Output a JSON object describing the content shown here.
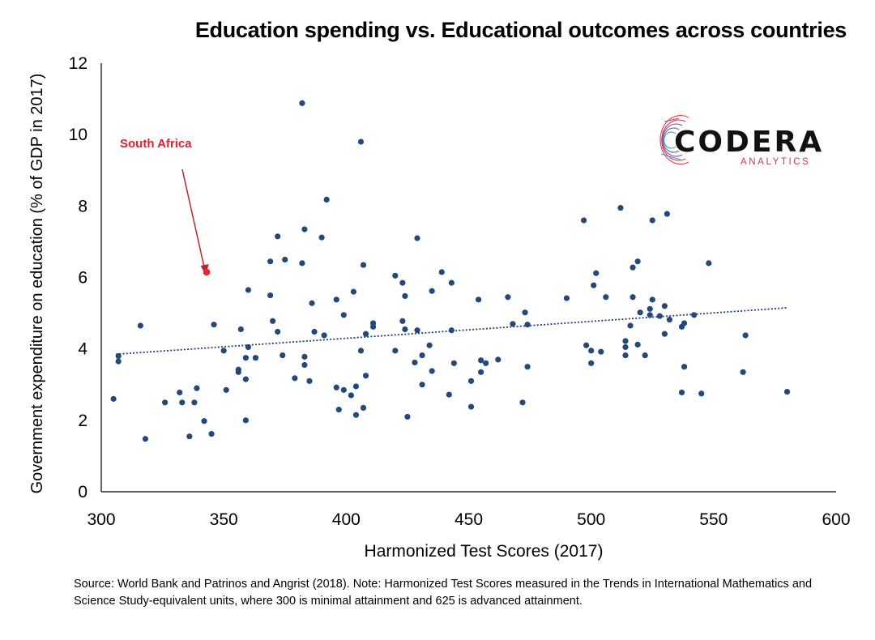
{
  "chart_data": {
    "type": "scatter",
    "title": "Education spending vs. Educational outcomes across countries",
    "xlabel": "Harmonized Test Scores (2017)",
    "ylabel": "Government expenditure on education (% of GDP in 2017)",
    "xlim": [
      300,
      600
    ],
    "ylim": [
      0,
      12
    ],
    "xticks": [
      300,
      350,
      400,
      450,
      500,
      550,
      600
    ],
    "yticks": [
      0,
      2,
      4,
      6,
      8,
      10,
      12
    ],
    "grid": false,
    "trendline": {
      "style": "dotted",
      "x": [
        306,
        580
      ],
      "y": [
        3.85,
        5.15
      ]
    },
    "highlight": {
      "label": "South Africa",
      "x": 343,
      "y": 6.15,
      "color": "#d9232e"
    },
    "point_color": "#23497a",
    "points": [
      [
        305,
        2.6
      ],
      [
        307,
        3.8
      ],
      [
        307,
        3.65
      ],
      [
        316,
        4.65
      ],
      [
        318,
        1.48
      ],
      [
        326,
        2.5
      ],
      [
        332,
        2.78
      ],
      [
        333,
        2.5
      ],
      [
        336,
        1.55
      ],
      [
        338,
        2.5
      ],
      [
        339,
        2.9
      ],
      [
        342,
        1.98
      ],
      [
        345,
        1.62
      ],
      [
        346,
        4.68
      ],
      [
        350,
        3.95
      ],
      [
        351,
        2.85
      ],
      [
        356,
        3.42
      ],
      [
        356,
        3.35
      ],
      [
        357,
        4.55
      ],
      [
        359,
        3.75
      ],
      [
        359,
        3.15
      ],
      [
        359,
        2.0
      ],
      [
        360,
        5.65
      ],
      [
        360,
        4.05
      ],
      [
        363,
        3.75
      ],
      [
        369,
        6.45
      ],
      [
        369,
        5.5
      ],
      [
        370,
        4.78
      ],
      [
        372,
        4.48
      ],
      [
        372,
        7.15
      ],
      [
        374,
        3.82
      ],
      [
        375,
        6.5
      ],
      [
        379,
        3.18
      ],
      [
        382,
        10.88
      ],
      [
        382,
        6.4
      ],
      [
        383,
        7.35
      ],
      [
        383,
        3.78
      ],
      [
        383,
        3.55
      ],
      [
        385,
        3.1
      ],
      [
        386,
        5.28
      ],
      [
        387,
        4.48
      ],
      [
        390,
        7.12
      ],
      [
        391,
        4.38
      ],
      [
        392,
        8.18
      ],
      [
        396,
        5.38
      ],
      [
        396,
        2.92
      ],
      [
        397,
        2.3
      ],
      [
        399,
        4.95
      ],
      [
        399,
        2.85
      ],
      [
        402,
        2.7
      ],
      [
        403,
        5.6
      ],
      [
        404,
        2.95
      ],
      [
        404,
        2.15
      ],
      [
        406,
        3.95
      ],
      [
        406,
        9.8
      ],
      [
        407,
        6.35
      ],
      [
        407,
        2.35
      ],
      [
        408,
        3.25
      ],
      [
        408,
        4.42
      ],
      [
        411,
        4.72
      ],
      [
        411,
        4.62
      ],
      [
        420,
        6.05
      ],
      [
        420,
        3.95
      ],
      [
        423,
        4.78
      ],
      [
        423,
        5.85
      ],
      [
        424,
        4.55
      ],
      [
        424,
        5.48
      ],
      [
        425,
        2.1
      ],
      [
        428,
        3.62
      ],
      [
        429,
        7.1
      ],
      [
        429,
        4.52
      ],
      [
        431,
        3.82
      ],
      [
        431,
        3.0
      ],
      [
        434,
        4.1
      ],
      [
        435,
        5.62
      ],
      [
        435,
        3.38
      ],
      [
        439,
        6.15
      ],
      [
        442,
        2.72
      ],
      [
        443,
        5.85
      ],
      [
        443,
        4.52
      ],
      [
        444,
        3.6
      ],
      [
        451,
        3.1
      ],
      [
        451,
        2.38
      ],
      [
        454,
        5.38
      ],
      [
        455,
        3.68
      ],
      [
        455,
        3.35
      ],
      [
        457,
        3.6
      ],
      [
        462,
        3.7
      ],
      [
        466,
        5.45
      ],
      [
        468,
        4.7
      ],
      [
        472,
        2.5
      ],
      [
        473,
        5.02
      ],
      [
        474,
        4.68
      ],
      [
        474,
        3.5
      ],
      [
        490,
        5.42
      ],
      [
        497,
        7.6
      ],
      [
        498,
        4.1
      ],
      [
        500,
        3.95
      ],
      [
        500,
        3.6
      ],
      [
        501,
        5.78
      ],
      [
        502,
        6.12
      ],
      [
        504,
        3.92
      ],
      [
        506,
        5.45
      ],
      [
        512,
        7.95
      ],
      [
        514,
        4.22
      ],
      [
        514,
        4.05
      ],
      [
        514,
        3.82
      ],
      [
        516,
        4.65
      ],
      [
        517,
        6.28
      ],
      [
        517,
        5.45
      ],
      [
        519,
        6.45
      ],
      [
        519,
        4.12
      ],
      [
        520,
        5.02
      ],
      [
        522,
        3.82
      ],
      [
        524,
        5.12
      ],
      [
        524,
        4.95
      ],
      [
        525,
        7.6
      ],
      [
        525,
        5.38
      ],
      [
        528,
        4.92
      ],
      [
        530,
        5.2
      ],
      [
        530,
        4.42
      ],
      [
        531,
        7.78
      ],
      [
        532,
        4.82
      ],
      [
        537,
        4.62
      ],
      [
        537,
        2.78
      ],
      [
        538,
        4.72
      ],
      [
        538,
        3.5
      ],
      [
        542,
        4.95
      ],
      [
        545,
        2.75
      ],
      [
        548,
        6.4
      ],
      [
        562,
        3.35
      ],
      [
        563,
        4.38
      ],
      [
        580,
        2.8
      ]
    ]
  },
  "logo": {
    "word": "CODERA",
    "sub": "ANALYTICS"
  },
  "source_text": "Source: World Bank and Patrinos and Angrist (2018). Note: Harmonized Test Scores measured in the Trends in International Mathematics and Science Study-equivalent units, where 300 is minimal attainment and 625 is advanced attainment."
}
